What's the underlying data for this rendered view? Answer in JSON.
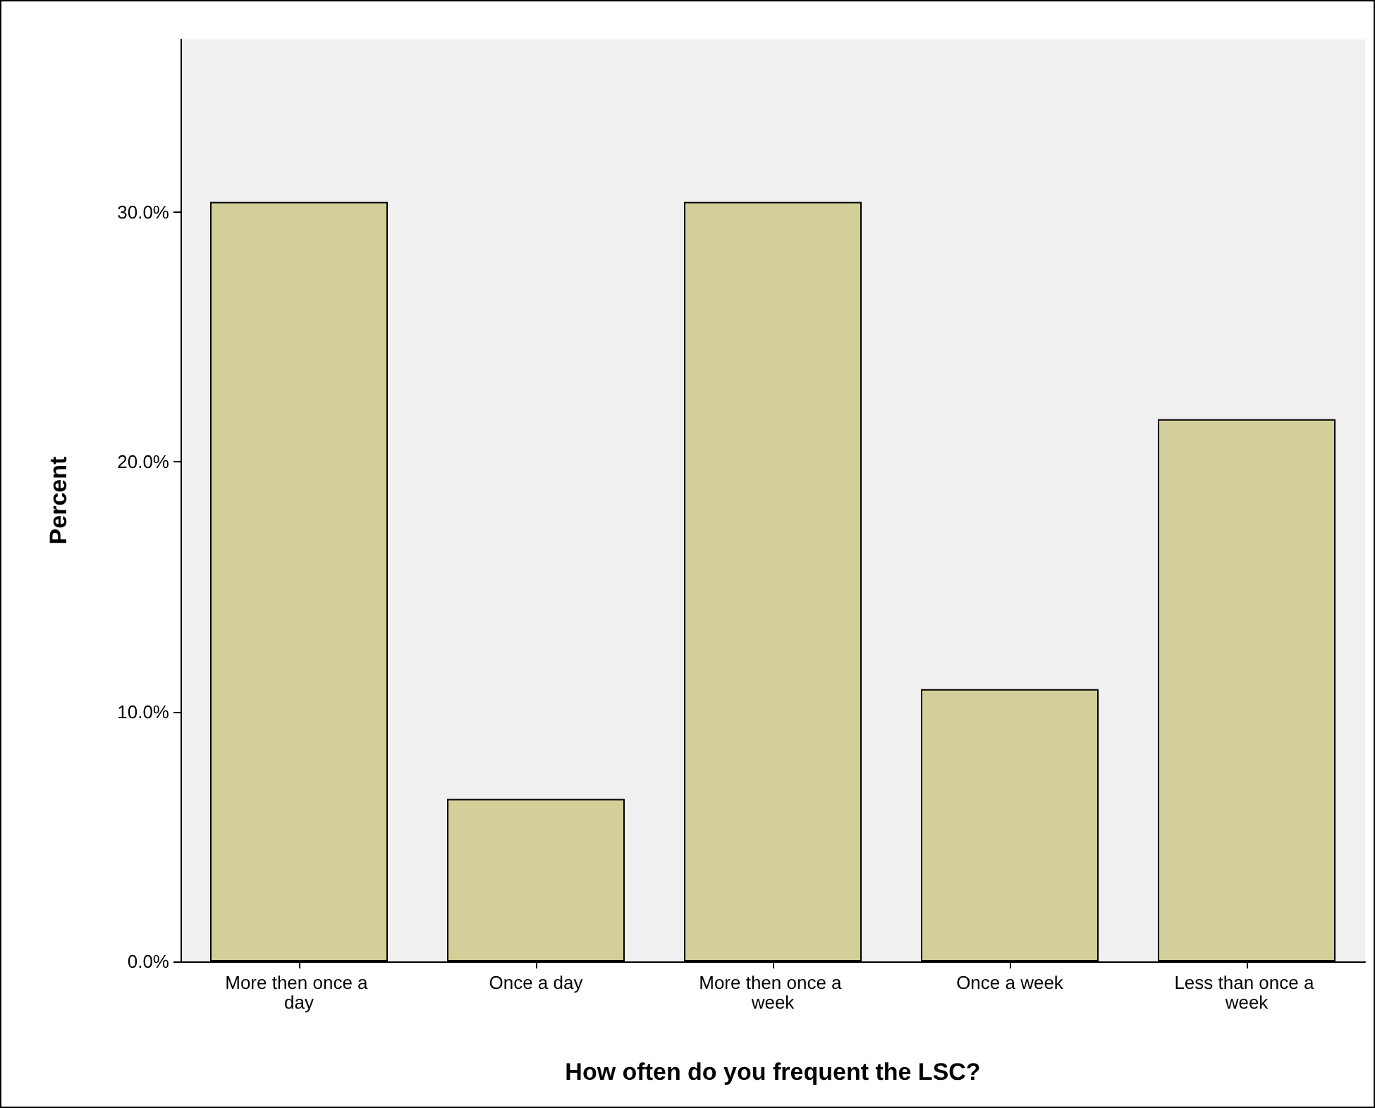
{
  "chart_data": {
    "type": "bar",
    "xlabel": "How often do you frequent the LSC?",
    "ylabel": "Percent",
    "categories": [
      "More then once a day",
      "Once a day",
      "More then once a week",
      "Once a week",
      "Less than once a week"
    ],
    "values": [
      30.4,
      6.5,
      30.4,
      10.9,
      21.7
    ],
    "color": "#d3cf98",
    "ylim": [
      0,
      36.9
    ],
    "yticks": [
      {
        "value": 0,
        "label": "0.0%"
      },
      {
        "value": 10,
        "label": "10.0%"
      },
      {
        "value": 20,
        "label": "20.0%"
      },
      {
        "value": 30,
        "label": "30.0%"
      }
    ],
    "grid": false
  }
}
